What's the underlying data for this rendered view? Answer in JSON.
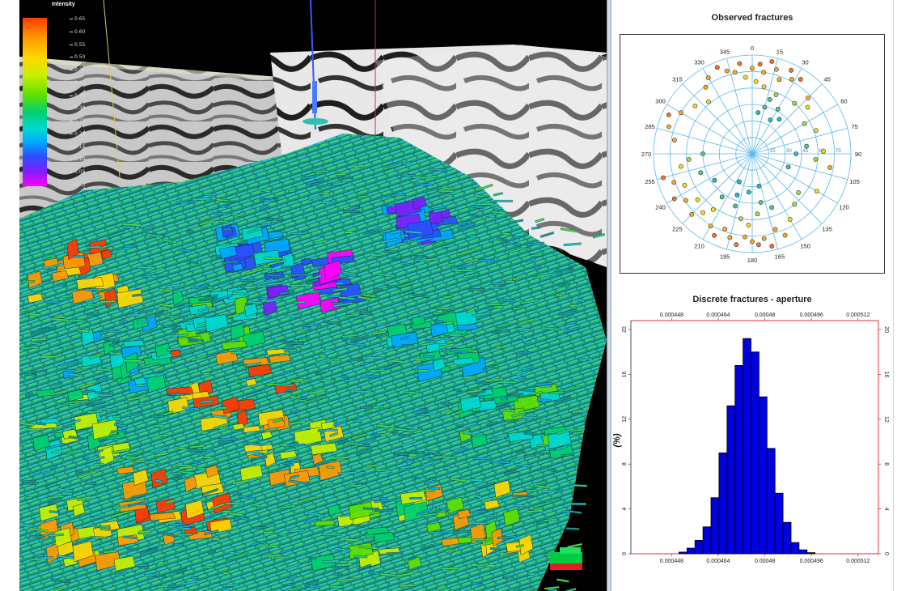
{
  "viewport": {
    "legend_title": "Intensity",
    "legend_ticks": [
      "0.65",
      "0.60",
      "0.55",
      "0.50",
      "0.45",
      "0.40",
      "0.35",
      "0.30",
      "0.25",
      "0.20",
      "0.15",
      "0.10",
      "0.05",
      "0.00"
    ],
    "colormap": [
      "#ff3a00",
      "#ff9a00",
      "#ffd800",
      "#c8f000",
      "#5fe000",
      "#00d070",
      "#00d8d0",
      "#00a8ff",
      "#2a50ff",
      "#7a20ff",
      "#ff00ff"
    ]
  },
  "rose_panel": {
    "title": "Observed fractures",
    "angle_labels": [
      "0",
      "15",
      "30",
      "45",
      "60",
      "75",
      "90",
      "105",
      "120",
      "135",
      "150",
      "165",
      "180",
      "195",
      "210",
      "225",
      "240",
      "255",
      "270",
      "285",
      "300",
      "315",
      "330",
      "345"
    ],
    "ring_labels": [
      "15",
      "30",
      "45",
      "60",
      "75"
    ]
  },
  "histogram_panel": {
    "title": "Discrete fractures - aperture"
  },
  "chart_data": [
    {
      "type": "scatter",
      "projection": "polar",
      "title": "Observed fractures",
      "angle_ticks": [
        0,
        15,
        30,
        45,
        60,
        75,
        90,
        105,
        120,
        135,
        150,
        165,
        180,
        195,
        210,
        225,
        240,
        255,
        270,
        285,
        300,
        315,
        330,
        345
      ],
      "radius_ticks": [
        15,
        30,
        45,
        60,
        75
      ],
      "rlim": [
        0,
        90
      ],
      "grid": true,
      "point_colors": [
        "#ff7020",
        "#ffaa20",
        "#f0e020",
        "#a0e040",
        "#40d090",
        "#20c0c8"
      ],
      "points": [
        {
          "azimuth": 0,
          "dip": 78
        },
        {
          "azimuth": 5,
          "dip": 82
        },
        {
          "azimuth": 8,
          "dip": 75
        },
        {
          "azimuth": 12,
          "dip": 86
        },
        {
          "azimuth": 16,
          "dip": 80
        },
        {
          "azimuth": 20,
          "dip": 72
        },
        {
          "azimuth": 25,
          "dip": 84
        },
        {
          "azimuth": 28,
          "dip": 77
        },
        {
          "azimuth": 33,
          "dip": 81
        },
        {
          "azimuth": 352,
          "dip": 83
        },
        {
          "azimuth": 348,
          "dip": 76
        },
        {
          "azimuth": 343,
          "dip": 79
        },
        {
          "azimuth": 338,
          "dip": 85
        },
        {
          "azimuth": 355,
          "dip": 70
        },
        {
          "azimuth": 3,
          "dip": 66
        },
        {
          "azimuth": 10,
          "dip": 62
        },
        {
          "azimuth": 22,
          "dip": 58
        },
        {
          "azimuth": 18,
          "dip": 52
        },
        {
          "azimuth": 30,
          "dip": 47
        },
        {
          "azimuth": 40,
          "dip": 60
        },
        {
          "azimuth": 45,
          "dip": 72
        },
        {
          "azimuth": 50,
          "dip": 66
        },
        {
          "azimuth": 38,
          "dip": 40
        },
        {
          "azimuth": 28,
          "dip": 35
        },
        {
          "azimuth": 15,
          "dip": 44
        },
        {
          "azimuth": 8,
          "dip": 38
        },
        {
          "azimuth": 60,
          "dip": 55
        },
        {
          "azimuth": 70,
          "dip": 62
        },
        {
          "azimuth": 82,
          "dip": 50
        },
        {
          "azimuth": 88,
          "dip": 65
        },
        {
          "azimuth": 95,
          "dip": 58
        },
        {
          "azimuth": 100,
          "dip": 72
        },
        {
          "azimuth": 90,
          "dip": 40
        },
        {
          "azimuth": 110,
          "dip": 35
        },
        {
          "azimuth": 180,
          "dip": 80
        },
        {
          "azimuth": 185,
          "dip": 76
        },
        {
          "azimuth": 190,
          "dip": 84
        },
        {
          "azimuth": 176,
          "dip": 83
        },
        {
          "azimuth": 172,
          "dip": 78
        },
        {
          "azimuth": 168,
          "dip": 86
        },
        {
          "azimuth": 195,
          "dip": 79
        },
        {
          "azimuth": 200,
          "dip": 73
        },
        {
          "azimuth": 205,
          "dip": 82
        },
        {
          "azimuth": 210,
          "dip": 76
        },
        {
          "azimuth": 163,
          "dip": 72
        },
        {
          "azimuth": 158,
          "dip": 80
        },
        {
          "azimuth": 150,
          "dip": 69
        },
        {
          "azimuth": 183,
          "dip": 65
        },
        {
          "azimuth": 190,
          "dip": 60
        },
        {
          "azimuth": 175,
          "dip": 55
        },
        {
          "azimuth": 198,
          "dip": 50
        },
        {
          "azimuth": 170,
          "dip": 45
        },
        {
          "azimuth": 160,
          "dip": 52
        },
        {
          "azimuth": 215,
          "dip": 62
        },
        {
          "azimuth": 220,
          "dip": 70
        },
        {
          "azimuth": 225,
          "dip": 78
        },
        {
          "azimuth": 230,
          "dip": 65
        },
        {
          "azimuth": 235,
          "dip": 74
        },
        {
          "azimuth": 240,
          "dip": 82
        },
        {
          "azimuth": 245,
          "dip": 68
        },
        {
          "azimuth": 250,
          "dip": 76
        },
        {
          "azimuth": 255,
          "dip": 84
        },
        {
          "azimuth": 260,
          "dip": 66
        },
        {
          "azimuth": 265,
          "dip": 58
        },
        {
          "azimuth": 270,
          "dip": 45
        },
        {
          "azimuth": 280,
          "dip": 72
        },
        {
          "azimuth": 288,
          "dip": 80
        },
        {
          "azimuth": 295,
          "dip": 84
        },
        {
          "azimuth": 300,
          "dip": 75
        },
        {
          "azimuth": 310,
          "dip": 68
        },
        {
          "azimuth": 320,
          "dip": 62
        },
        {
          "azimuth": 325,
          "dip": 74
        },
        {
          "azimuth": 330,
          "dip": 80
        },
        {
          "azimuth": 200,
          "dip": 40
        },
        {
          "azimuth": 185,
          "dip": 35
        },
        {
          "azimuth": 215,
          "dip": 48
        },
        {
          "azimuth": 140,
          "dip": 60
        },
        {
          "azimuth": 130,
          "dip": 55
        },
        {
          "azimuth": 120,
          "dip": 68
        },
        {
          "azimuth": 250,
          "dip": 50
        },
        {
          "azimuth": 235,
          "dip": 42
        },
        {
          "azimuth": 205,
          "dip": 28
        },
        {
          "azimuth": 168,
          "dip": 30
        }
      ]
    },
    {
      "type": "bar",
      "title": "Discrete fractures - aperture",
      "ylabel": "(%)",
      "xlabel": "",
      "x_ticks": [
        "0.000448",
        "0.000464",
        "0.00048",
        "0.000496",
        "0.000512"
      ],
      "x_tick_values": [
        0.000448,
        0.000464,
        0.00048,
        0.000496,
        0.000512
      ],
      "y_ticks": [
        "0",
        "4",
        "8",
        "12",
        "16",
        "20"
      ],
      "ylim": [
        0,
        20.8
      ],
      "xlim": [
        0.000434,
        0.000519
      ],
      "bin_start": 0.0004505,
      "bin_width": 2.75e-06,
      "values": [
        0.15,
        0.5,
        1.2,
        2.4,
        5.0,
        9.0,
        13.2,
        16.8,
        19.2,
        18.0,
        14.0,
        9.4,
        5.4,
        2.8,
        1.0,
        0.35,
        0.1
      ]
    }
  ]
}
